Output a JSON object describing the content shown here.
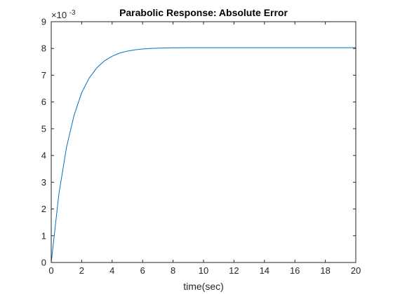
{
  "chart_data": {
    "type": "line",
    "title": "Parabolic Response: Absolute Error",
    "xlabel": "time(sec)",
    "ylabel": "",
    "xlim": [
      0,
      20
    ],
    "ylim": [
      0,
      9
    ],
    "y_exponent_label": "×10",
    "y_exponent_power": "-3",
    "x_ticks": [
      "0",
      "2",
      "4",
      "6",
      "8",
      "10",
      "12",
      "14",
      "16",
      "18",
      "20"
    ],
    "y_ticks": [
      "0",
      "1",
      "2",
      "3",
      "4",
      "5",
      "6",
      "7",
      "8",
      "9"
    ],
    "grid": false,
    "box": true,
    "line_color": "#0072BD",
    "series": [
      {
        "x": [
          0,
          0.5,
          1,
          1.5,
          2,
          2.5,
          3,
          3.5,
          4,
          4.5,
          5,
          5.5,
          6,
          6.5,
          7,
          7.5,
          8,
          9,
          10,
          11,
          12,
          13,
          14,
          15,
          16,
          17,
          18,
          19,
          20
        ],
        "values": [
          0,
          2.55,
          4.3,
          5.5,
          6.35,
          6.9,
          7.28,
          7.54,
          7.71,
          7.83,
          7.9,
          7.95,
          7.98,
          8.0,
          8.01,
          8.02,
          8.025,
          8.028,
          8.03,
          8.03,
          8.03,
          8.03,
          8.03,
          8.03,
          8.03,
          8.03,
          8.03,
          8.03,
          8.03
        ]
      }
    ]
  }
}
